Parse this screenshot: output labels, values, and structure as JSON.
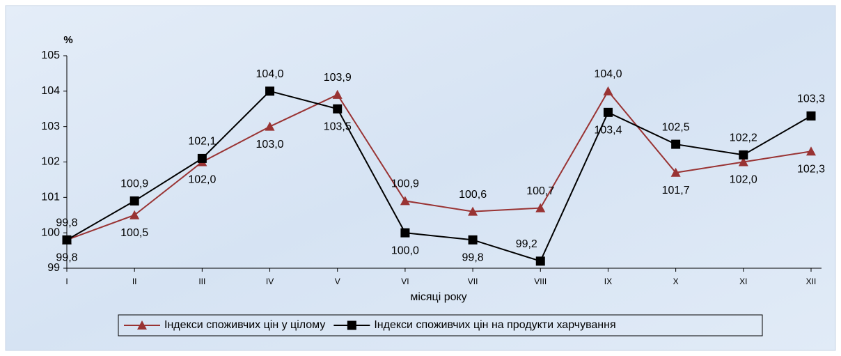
{
  "chart_data": {
    "type": "line",
    "y_label": "%",
    "x_label": "місяці року",
    "categories": [
      "I",
      "II",
      "III",
      "IV",
      "V",
      "VI",
      "VII",
      "VIII",
      "IX",
      "X",
      "XI",
      "XII"
    ],
    "series": [
      {
        "name": "Індекси споживчих цін у цілому",
        "color": "#993333",
        "marker": "triangle",
        "values": [
          99.8,
          100.5,
          102.0,
          103.0,
          103.9,
          100.9,
          100.6,
          100.7,
          104.0,
          101.7,
          102.0,
          102.3
        ],
        "value_labels": [
          "99,8",
          "100,5",
          "102,0",
          "103,0",
          "103,9",
          "100,9",
          "100,6",
          "100,7",
          "104,0",
          "101,7",
          "102,0",
          "102,3"
        ]
      },
      {
        "name": "Індекси споживчих цін на продукти харчування",
        "color": "#000000",
        "marker": "square",
        "values": [
          99.8,
          100.9,
          102.1,
          104.0,
          103.5,
          100.0,
          99.8,
          99.2,
          103.4,
          102.5,
          102.2,
          103.3
        ],
        "value_labels": [
          "99,8",
          "100,9",
          "102,1",
          "104,0",
          "103,5",
          "100,0",
          "99,8",
          "99,2",
          "103,4",
          "102,5",
          "102,2",
          "103,3"
        ]
      }
    ],
    "ylim": [
      99,
      105
    ],
    "yticks": [
      99,
      100,
      101,
      102,
      103,
      104,
      105
    ]
  }
}
